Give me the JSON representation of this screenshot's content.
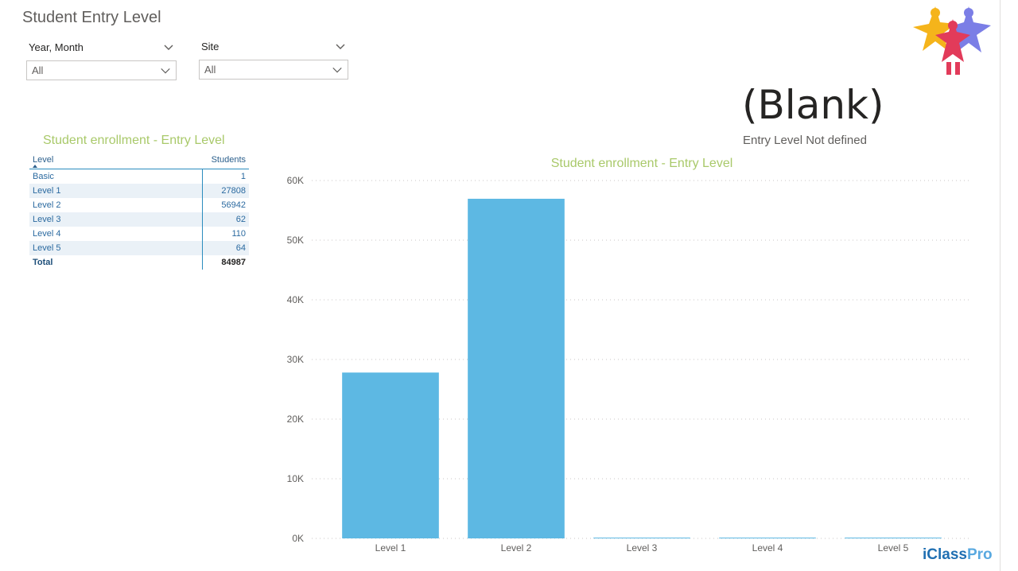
{
  "page": {
    "title": "Student Entry Level"
  },
  "filters": [
    {
      "label": "Year, Month",
      "value": "All",
      "icon": "chevron-down-icon"
    },
    {
      "label": "Site",
      "value": "All",
      "icon": "chevron-down-icon"
    }
  ],
  "table": {
    "title": "Student enrollment - Entry Level",
    "headers": {
      "level": "Level",
      "students": "Students"
    },
    "rows": [
      {
        "level": "Basic",
        "students": "1"
      },
      {
        "level": "Level 1",
        "students": "27808"
      },
      {
        "level": "Level 2",
        "students": "56942"
      },
      {
        "level": "Level 3",
        "students": "62"
      },
      {
        "level": "Level 4",
        "students": "110"
      },
      {
        "level": "Level 5",
        "students": "64"
      }
    ],
    "total": {
      "label": "Total",
      "value": "84987"
    }
  },
  "card": {
    "value": "(Blank)",
    "label": "Entry Level Not defined"
  },
  "chart_data": {
    "type": "bar",
    "title": "Student enrollment - Entry Level",
    "categories": [
      "Level 1",
      "Level 2",
      "Level 3",
      "Level 4",
      "Level 5"
    ],
    "values": [
      27808,
      56942,
      62,
      110,
      64
    ],
    "ylim": [
      0,
      60000
    ],
    "yticks": [
      0,
      10000,
      20000,
      30000,
      40000,
      50000,
      60000
    ],
    "ytick_labels": [
      "0K",
      "10K",
      "20K",
      "30K",
      "40K",
      "50K",
      "60K"
    ],
    "xlabel": "",
    "ylabel": "",
    "grid": true,
    "bar_color": "#5db8e3"
  },
  "brand": {
    "name_a": "iClass",
    "name_b": "Pro"
  },
  "colors": {
    "accent_title": "#a9c96a",
    "bar": "#5db8e3",
    "table_blue": "#2b6aa0"
  }
}
